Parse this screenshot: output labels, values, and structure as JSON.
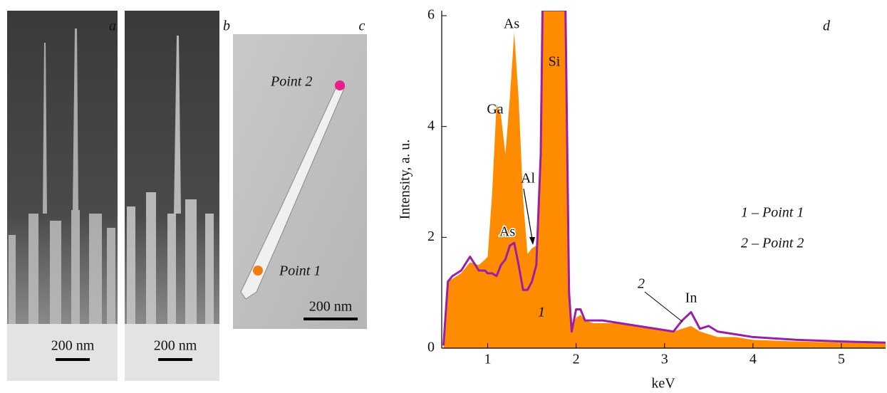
{
  "panels": [
    {
      "label": "a",
      "scale": "200 nm"
    },
    {
      "label": "b",
      "scale": "200 nm"
    },
    {
      "label": "c",
      "scale": "200 nm",
      "points": [
        "Point 2",
        "Point 1"
      ]
    }
  ],
  "chart_data": {
    "type": "area",
    "panel_label": "d",
    "x_label": "keV",
    "y_label": "Intensity, a. u.",
    "x": [
      0.5,
      0.55,
      0.6,
      0.7,
      0.8,
      0.9,
      0.97,
      1.0,
      1.05,
      1.1,
      1.15,
      1.2,
      1.25,
      1.3,
      1.35,
      1.4,
      1.45,
      1.5,
      1.55,
      1.6,
      1.62,
      1.65,
      1.7,
      1.8,
      1.88,
      1.92,
      1.95,
      2.0,
      2.05,
      2.1,
      2.2,
      2.3,
      2.5,
      2.7,
      2.9,
      3.1,
      3.2,
      3.3,
      3.4,
      3.5,
      3.6,
      3.8,
      4.0,
      4.5,
      5.0,
      5.5
    ],
    "series": [
      {
        "name": "1 – Point 1",
        "color": "#ff8c00",
        "values": [
          0.1,
          1.2,
          1.25,
          1.35,
          1.55,
          1.5,
          1.6,
          1.65,
          2.8,
          4.4,
          4.2,
          3.5,
          4.5,
          5.7,
          4.5,
          2.7,
          1.7,
          1.8,
          1.85,
          3.0,
          6.1,
          6.1,
          6.1,
          6.1,
          6.1,
          1.5,
          0.4,
          0.55,
          0.6,
          0.5,
          0.45,
          0.45,
          0.45,
          0.4,
          0.35,
          0.3,
          0.35,
          0.4,
          0.3,
          0.25,
          0.2,
          0.2,
          0.15,
          0.12,
          0.1,
          0.1
        ]
      },
      {
        "name": "2 – Point 2",
        "color": "#9b1fa6",
        "values": [
          0.05,
          1.2,
          1.3,
          1.4,
          1.65,
          1.4,
          1.4,
          1.35,
          1.35,
          1.3,
          1.5,
          1.6,
          1.85,
          1.9,
          1.5,
          1.05,
          1.05,
          1.2,
          1.5,
          3.5,
          6.1,
          6.1,
          6.1,
          6.1,
          6.1,
          1.0,
          0.3,
          0.7,
          0.7,
          0.5,
          0.5,
          0.5,
          0.45,
          0.4,
          0.35,
          0.3,
          0.5,
          0.65,
          0.35,
          0.4,
          0.3,
          0.25,
          0.2,
          0.15,
          0.12,
          0.1
        ]
      }
    ],
    "xlim": [
      0.48,
      5.5
    ],
    "ylim": [
      0,
      6.09
    ],
    "xticks": [
      1,
      2,
      3,
      4,
      5
    ],
    "yticks": [
      0,
      2,
      4,
      6
    ],
    "annotations": [
      "Ga",
      "As",
      "As",
      "Al",
      "Si",
      "In",
      "1",
      "2"
    ]
  }
}
